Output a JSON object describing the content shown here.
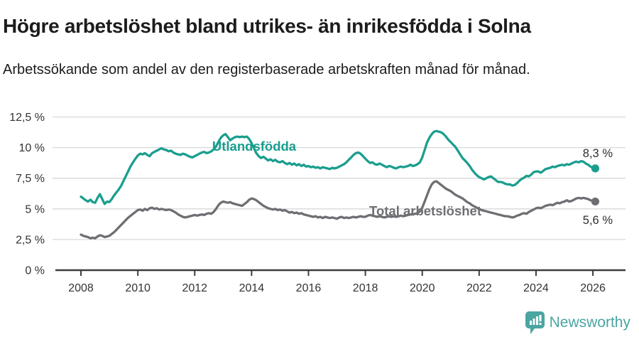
{
  "header": {
    "title": "Högre arbetslöshet bland utrikes- än inrikesfödda i Solna",
    "subtitle": "Arbetssökande som andel av den registerbaserade arbetskraften månad för månad."
  },
  "footer": {
    "brand": "Newsworthy",
    "logo_icon": "bar-chart-speech-bubble-icon",
    "brand_color": "#4ba5a1"
  },
  "chart_data": {
    "type": "line",
    "title": "Högre arbetslöshet bland utrikes- än inrikesfödda i Solna",
    "subtitle": "Arbetssökande som andel av den registerbaserade arbetskraften månad för månad.",
    "grid": "horizontal",
    "legend_position": "inline-labels-on-lines",
    "x_axis": {
      "tick_values": [
        2008,
        2010,
        2012,
        2014,
        2016,
        2018,
        2020,
        2022,
        2024,
        2026
      ],
      "tick_labels": [
        "2008",
        "2010",
        "2012",
        "2014",
        "2016",
        "2018",
        "2020",
        "2022",
        "2024",
        "2026"
      ],
      "range": [
        2008,
        2026.2
      ]
    },
    "y_axis": {
      "unit": "%",
      "tick_values": [
        0,
        2.5,
        5,
        7.5,
        10,
        12.5
      ],
      "tick_labels": [
        "0 %",
        "2,5 %",
        "5 %",
        "7,5 %",
        "10 %",
        "12,5 %"
      ],
      "range": [
        0,
        12.5
      ]
    },
    "colors": {
      "grid": "#d8d8d8",
      "axis": "#3d3d3d",
      "tick_text": "#333333",
      "annotation_text": "#2e2e2e"
    },
    "sampling": {
      "start_year": 2008,
      "points_per_year": 12
    },
    "series": [
      {
        "name": "Utlandsfödda",
        "color": "#1a9e8e",
        "end_label": "8,3 %",
        "end_value": 8.3,
        "end_dot": true,
        "values": [
          6.0,
          5.85,
          5.7,
          5.6,
          5.75,
          5.55,
          5.5,
          5.9,
          6.2,
          5.8,
          5.4,
          5.6,
          5.55,
          5.8,
          6.1,
          6.35,
          6.6,
          6.9,
          7.3,
          7.7,
          8.1,
          8.5,
          8.8,
          9.1,
          9.35,
          9.5,
          9.45,
          9.55,
          9.4,
          9.3,
          9.55,
          9.65,
          9.75,
          9.85,
          9.95,
          9.85,
          9.8,
          9.7,
          9.75,
          9.6,
          9.5,
          9.45,
          9.4,
          9.5,
          9.45,
          9.35,
          9.25,
          9.2,
          9.3,
          9.4,
          9.5,
          9.6,
          9.65,
          9.55,
          9.6,
          9.7,
          9.85,
          10.1,
          10.45,
          10.8,
          11.0,
          11.1,
          10.85,
          10.6,
          10.75,
          10.85,
          10.9,
          10.85,
          10.9,
          10.85,
          10.9,
          10.7,
          10.35,
          9.95,
          9.55,
          9.3,
          9.15,
          9.25,
          9.1,
          8.95,
          9.05,
          8.9,
          9.0,
          8.85,
          8.8,
          8.9,
          8.75,
          8.65,
          8.75,
          8.6,
          8.7,
          8.55,
          8.65,
          8.5,
          8.6,
          8.45,
          8.5,
          8.4,
          8.45,
          8.35,
          8.4,
          8.3,
          8.4,
          8.35,
          8.3,
          8.25,
          8.35,
          8.3,
          8.35,
          8.45,
          8.55,
          8.65,
          8.8,
          9.0,
          9.2,
          9.4,
          9.55,
          9.6,
          9.5,
          9.3,
          9.1,
          8.9,
          8.75,
          8.8,
          8.65,
          8.6,
          8.7,
          8.6,
          8.5,
          8.4,
          8.5,
          8.45,
          8.35,
          8.3,
          8.4,
          8.45,
          8.4,
          8.45,
          8.5,
          8.6,
          8.5,
          8.55,
          8.65,
          8.8,
          9.2,
          9.8,
          10.4,
          10.8,
          11.1,
          11.3,
          11.35,
          11.3,
          11.25,
          11.1,
          10.9,
          10.65,
          10.45,
          10.25,
          10.05,
          9.75,
          9.45,
          9.15,
          8.95,
          8.75,
          8.5,
          8.2,
          7.95,
          7.75,
          7.6,
          7.5,
          7.4,
          7.5,
          7.6,
          7.65,
          7.5,
          7.35,
          7.2,
          7.2,
          7.15,
          7.05,
          7.0,
          7.0,
          6.9,
          6.95,
          7.1,
          7.3,
          7.45,
          7.55,
          7.7,
          7.65,
          7.8,
          8.0,
          8.05,
          8.05,
          7.95,
          8.1,
          8.25,
          8.3,
          8.35,
          8.45,
          8.4,
          8.5,
          8.55,
          8.6,
          8.55,
          8.65,
          8.6,
          8.7,
          8.8,
          8.85,
          8.8,
          8.9,
          8.85,
          8.7,
          8.6,
          8.45,
          8.35,
          8.3
        ]
      },
      {
        "name": "Total arbetslöshet",
        "color": "#6e6e73",
        "end_label": "5,6 %",
        "end_value": 5.6,
        "end_dot": true,
        "values": [
          2.9,
          2.8,
          2.75,
          2.7,
          2.6,
          2.65,
          2.6,
          2.75,
          2.85,
          2.8,
          2.7,
          2.75,
          2.8,
          2.95,
          3.1,
          3.3,
          3.5,
          3.7,
          3.9,
          4.1,
          4.3,
          4.45,
          4.6,
          4.75,
          4.9,
          4.95,
          4.85,
          5.0,
          4.9,
          5.05,
          5.1,
          5.0,
          5.05,
          4.95,
          5.0,
          4.95,
          4.9,
          4.95,
          4.9,
          4.8,
          4.7,
          4.55,
          4.45,
          4.35,
          4.3,
          4.35,
          4.4,
          4.45,
          4.5,
          4.45,
          4.5,
          4.55,
          4.5,
          4.6,
          4.65,
          4.6,
          4.75,
          5.0,
          5.3,
          5.5,
          5.6,
          5.55,
          5.5,
          5.55,
          5.45,
          5.4,
          5.35,
          5.3,
          5.25,
          5.4,
          5.55,
          5.75,
          5.85,
          5.8,
          5.7,
          5.55,
          5.4,
          5.25,
          5.15,
          5.05,
          5.0,
          4.95,
          5.0,
          4.9,
          4.95,
          4.85,
          4.9,
          4.8,
          4.7,
          4.75,
          4.65,
          4.7,
          4.6,
          4.65,
          4.55,
          4.5,
          4.45,
          4.4,
          4.35,
          4.4,
          4.3,
          4.35,
          4.25,
          4.35,
          4.3,
          4.25,
          4.3,
          4.25,
          4.2,
          4.3,
          4.35,
          4.25,
          4.3,
          4.25,
          4.3,
          4.35,
          4.3,
          4.35,
          4.4,
          4.35,
          4.35,
          4.45,
          4.5,
          4.45,
          4.4,
          4.35,
          4.4,
          4.35,
          4.3,
          4.35,
          4.4,
          4.35,
          4.4,
          4.35,
          4.4,
          4.45,
          4.4,
          4.45,
          4.5,
          4.55,
          4.55,
          4.6,
          4.65,
          4.8,
          5.1,
          5.6,
          6.1,
          6.6,
          7.0,
          7.2,
          7.25,
          7.1,
          6.95,
          6.8,
          6.65,
          6.55,
          6.45,
          6.3,
          6.15,
          6.05,
          5.95,
          5.85,
          5.7,
          5.55,
          5.45,
          5.3,
          5.2,
          5.1,
          5.0,
          4.9,
          4.85,
          4.8,
          4.75,
          4.7,
          4.65,
          4.6,
          4.55,
          4.5,
          4.45,
          4.4,
          4.4,
          4.35,
          4.3,
          4.35,
          4.45,
          4.5,
          4.6,
          4.65,
          4.6,
          4.75,
          4.85,
          4.95,
          5.05,
          5.1,
          5.05,
          5.15,
          5.25,
          5.3,
          5.35,
          5.3,
          5.4,
          5.5,
          5.45,
          5.55,
          5.6,
          5.7,
          5.6,
          5.65,
          5.75,
          5.85,
          5.9,
          5.85,
          5.9,
          5.85,
          5.8,
          5.7,
          5.65,
          5.6
        ]
      }
    ]
  }
}
